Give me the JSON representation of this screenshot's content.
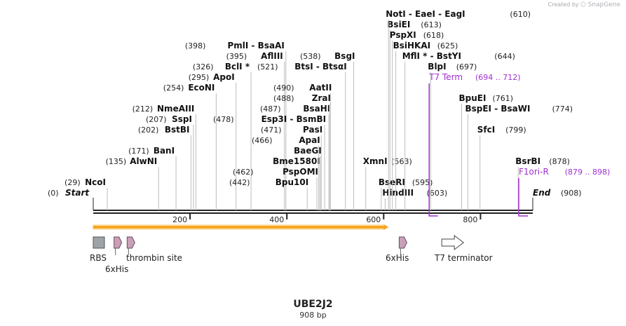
{
  "credit": {
    "text": "Created by",
    "brand": "SnapGene"
  },
  "title": "UBE2J2",
  "length_label": "908 bp",
  "sequence_length": 908,
  "ticks": [
    "200",
    "400",
    "600",
    "800"
  ],
  "ends": [
    {
      "name": "Start",
      "pos": "(0)",
      "bp": 0,
      "row": 0,
      "label_side": "left"
    },
    {
      "name": "End",
      "pos": "(908)",
      "bp": 908,
      "row": 0,
      "label_side": "right"
    }
  ],
  "sites": [
    {
      "name": "NcoI",
      "pos": "(29)",
      "bp": 29,
      "row": 1,
      "side": "right"
    },
    {
      "name": "AlwNI",
      "pos": "(135)",
      "bp": 135,
      "row": 3,
      "side": "right"
    },
    {
      "name": "BanI",
      "pos": "(171)",
      "bp": 171,
      "row": 4,
      "side": "right"
    },
    {
      "name": "BstBI",
      "pos": "(202)",
      "bp": 202,
      "row": 6,
      "side": "right"
    },
    {
      "name": "SspI",
      "pos": "(207)",
      "bp": 207,
      "row": 7,
      "side": "right"
    },
    {
      "name": "NmeAIII",
      "pos": "(212)",
      "bp": 212,
      "row": 8,
      "side": "right"
    },
    {
      "name": "EcoNI",
      "pos": "(254)",
      "bp": 254,
      "row": 10,
      "side": "right"
    },
    {
      "name": "ApoI",
      "pos": "(295)",
      "bp": 295,
      "row": 11,
      "side": "right"
    },
    {
      "name": "BclI *",
      "pos": "(326)",
      "bp": 326,
      "row": 12,
      "side": "right"
    },
    {
      "name": "AflIII",
      "pos": "(395)",
      "bp": 395,
      "row": 13,
      "side": "right"
    },
    {
      "name": "PmlI  -  BsaAI",
      "pos": "(398)",
      "bp": 398,
      "row": 14,
      "side": "right"
    },
    {
      "name": "Bpu10I",
      "pos": "(442)",
      "bp": 442,
      "row": 1,
      "side": "left"
    },
    {
      "name": "PspOMI",
      "pos": "(462)",
      "bp": 462,
      "row": 2,
      "side": "left"
    },
    {
      "name": "Bme1580I",
      "pos": "",
      "bp": 466,
      "row": 3,
      "side": "left"
    },
    {
      "name": "BaeGI",
      "pos": "",
      "bp": 469,
      "row": 4,
      "side": "left"
    },
    {
      "name": "ApaI",
      "pos": "(466)",
      "bp": 466,
      "row": 5,
      "side": "left"
    },
    {
      "name": "PasI",
      "pos": "(471)",
      "bp": 471,
      "row": 6,
      "side": "left"
    },
    {
      "name": "Esp3I  -  BsmBI",
      "pos": "(478)",
      "bp": 478,
      "row": 7,
      "side": "left"
    },
    {
      "name": "BsaHI",
      "pos": "(487)",
      "bp": 487,
      "row": 8,
      "side": "left"
    },
    {
      "name": "ZraI",
      "pos": "(488)",
      "bp": 488,
      "row": 9,
      "side": "left"
    },
    {
      "name": "AatII",
      "pos": "(490)",
      "bp": 490,
      "row": 10,
      "side": "left"
    },
    {
      "name": "BtsI  -  BtsαI",
      "pos": "(521)",
      "bp": 521,
      "row": 12,
      "side": "left"
    },
    {
      "name": "BsgI",
      "pos": "(538)",
      "bp": 538,
      "row": 13,
      "side": "left"
    },
    {
      "name": "XmnI",
      "pos": "(563)",
      "bp": 563,
      "row": 3,
      "side": "right"
    },
    {
      "name": "BseRI",
      "pos": "(595)",
      "bp": 595,
      "row": 1,
      "side": "right"
    },
    {
      "name": "HindIII",
      "pos": "(603)",
      "bp": 603,
      "row": 0,
      "side": "right"
    },
    {
      "name": "MflI *  -  BstYI",
      "pos": "(644)",
      "bp": 644,
      "row": 13,
      "side": "right"
    },
    {
      "name": "BsiHKAI",
      "pos": "(625)",
      "bp": 625,
      "row": 14,
      "side": "right"
    },
    {
      "name": "PspXI",
      "pos": "(618)",
      "bp": 618,
      "row": 15,
      "side": "right"
    },
    {
      "name": "BsiEI",
      "pos": "(613)",
      "bp": 613,
      "row": 16,
      "side": "right"
    },
    {
      "name": "NotI  -  EaeI  -  EagI",
      "pos": "(610)",
      "bp": 610,
      "row": 17,
      "side": "right"
    },
    {
      "name": "BlpI",
      "pos": "(697)",
      "bp": 697,
      "row": 12,
      "side": "right"
    },
    {
      "name": "BpuEI",
      "pos": "(761)",
      "bp": 761,
      "row": 9,
      "side": "right"
    },
    {
      "name": "BspEI  -  BsaWI",
      "pos": "(774)",
      "bp": 774,
      "row": 8,
      "side": "right"
    },
    {
      "name": "SfcI",
      "pos": "(799)",
      "bp": 799,
      "row": 6,
      "side": "right"
    },
    {
      "name": "BsrBI",
      "pos": "(878)",
      "bp": 878,
      "row": 3,
      "side": "right"
    }
  ],
  "primers": [
    {
      "name": "T7 Term",
      "range": "(694 .. 712)",
      "start": 694,
      "end": 712,
      "row": 11
    },
    {
      "name": "F1ori-R",
      "range": "(879 .. 898)",
      "start": 879,
      "end": 898,
      "row": 2
    }
  ],
  "orf": {
    "start": 0,
    "end": 600,
    "color": "#f5a623"
  },
  "features": [
    {
      "name": "RBS",
      "bp": 0,
      "shape": "box",
      "color": "#9ea3a8"
    },
    {
      "name": "6xHis",
      "bp": 43,
      "shape": "arrow",
      "color": "#c8a0b8"
    },
    {
      "name": "thrombin site",
      "bp": 70,
      "shape": "arrow",
      "color": "#c8a0b8"
    },
    {
      "name": "6xHis",
      "bp": 632,
      "shape": "arrow",
      "color": "#c8a0b8"
    },
    {
      "name": "T7 terminator",
      "bp": 720,
      "shape": "arrow-outline",
      "color": "#ffffff"
    }
  ],
  "colors": {
    "backbone": "#222222",
    "primer": "#a02fd0"
  }
}
